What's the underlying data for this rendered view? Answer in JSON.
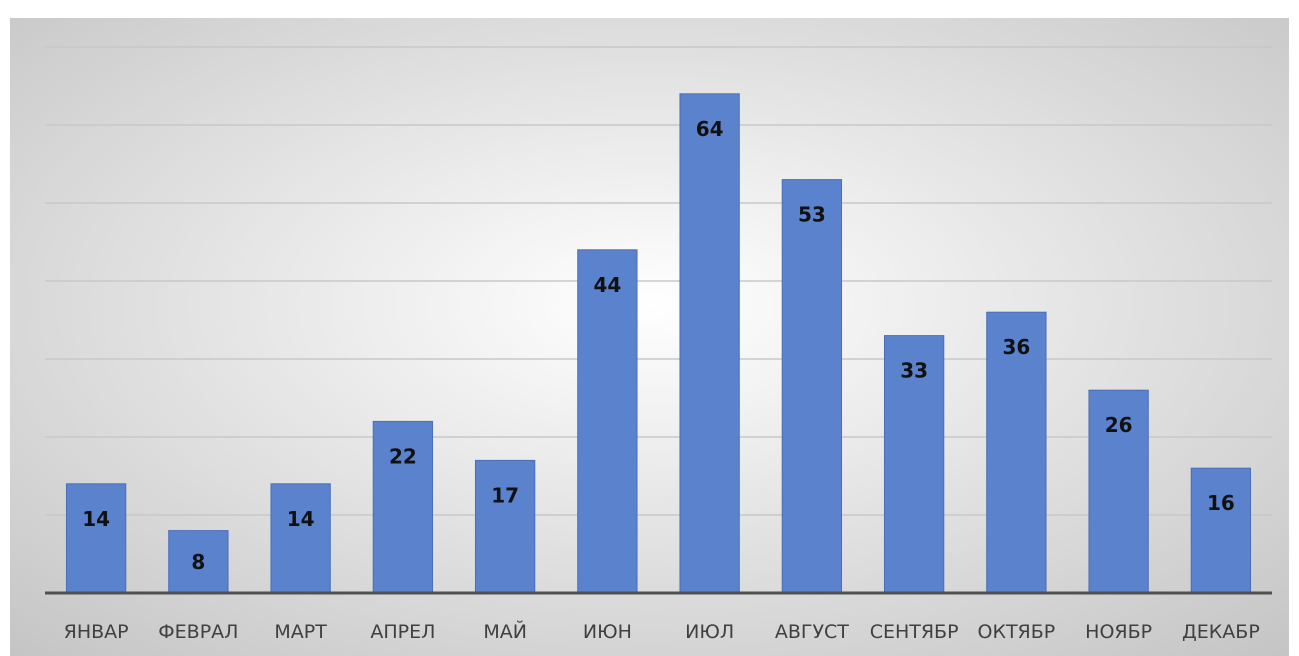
{
  "chart_data": {
    "type": "bar",
    "categories": [
      "ЯНВАР",
      "ФЕВРАЛ",
      "МАРТ",
      "АПРЕЛ",
      "МАЙ",
      "ИЮН",
      "ИЮЛ",
      "АВГУСТ",
      "СЕНТЯБР",
      "ОКТЯБР",
      "НОЯБР",
      "ДЕКАБР"
    ],
    "values": [
      14,
      8,
      14,
      22,
      17,
      44,
      64,
      53,
      33,
      36,
      26,
      16
    ],
    "title": "",
    "xlabel": "",
    "ylabel": "",
    "ylim": [
      0,
      70
    ],
    "grid": true,
    "data_labels": true,
    "legend": "none",
    "colors": {
      "bar": "#5b82cd",
      "bar_edge": "#4a6fb8",
      "grid": "#c8c8c8",
      "axis": "#505050",
      "background_center": "#ffffff",
      "background_edge": "#c4c4c4"
    }
  }
}
